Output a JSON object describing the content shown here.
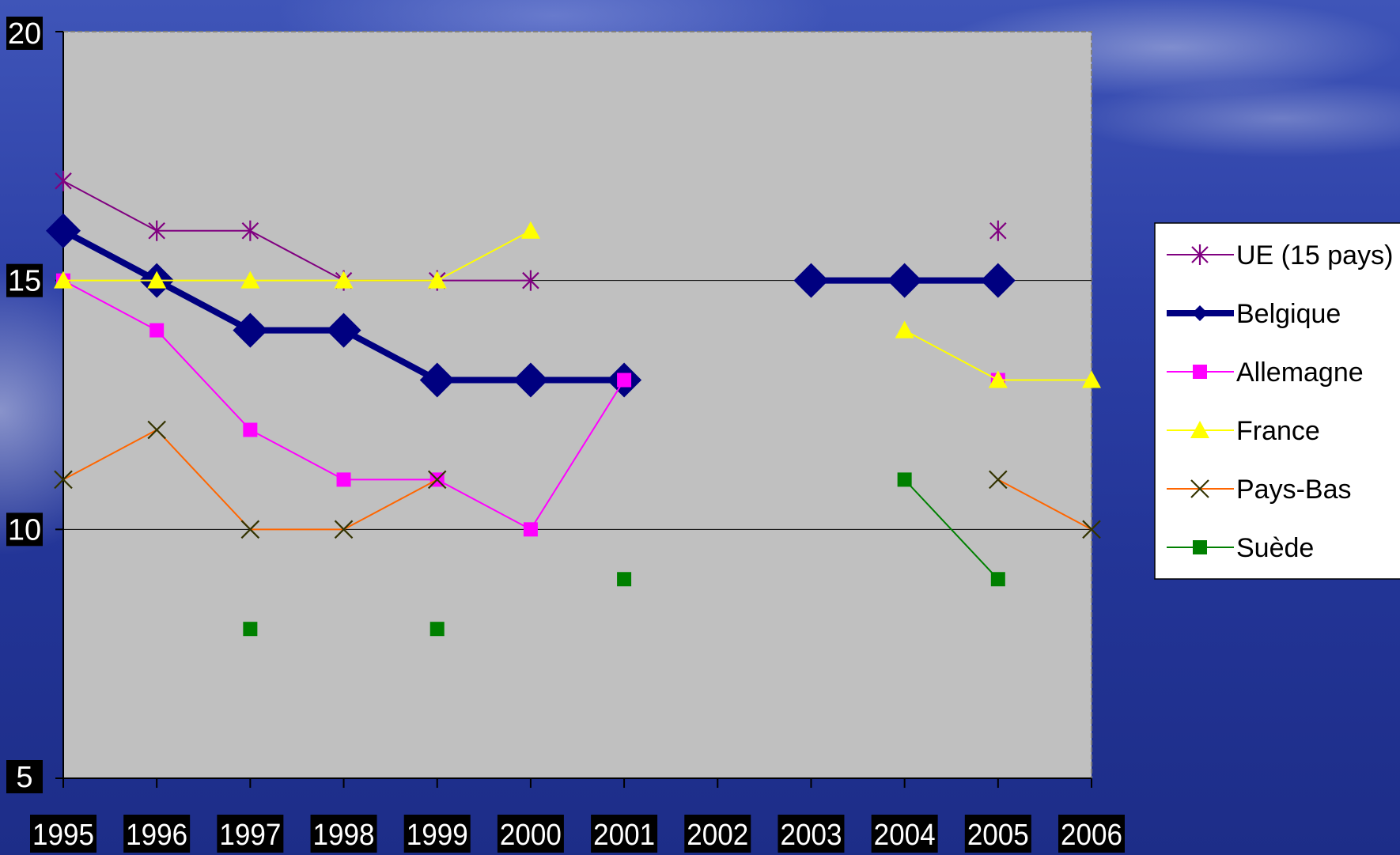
{
  "chart_data": {
    "type": "line",
    "title": "",
    "xlabel": "",
    "ylabel": "",
    "categories": [
      "1995",
      "1996",
      "1997",
      "1998",
      "1999",
      "2000",
      "2001",
      "2002",
      "2003",
      "2004",
      "2005",
      "2006"
    ],
    "ylim": [
      5,
      20
    ],
    "yticks": [
      5,
      10,
      15,
      20
    ],
    "grid": "horizontal",
    "legend_position": "right",
    "series": [
      {
        "name": "UE (15 pays)",
        "color": "#800080",
        "marker": "star",
        "width": 2,
        "values": [
          17,
          16,
          16,
          15,
          15,
          15,
          null,
          null,
          null,
          null,
          16,
          null
        ]
      },
      {
        "name": "Belgique",
        "color": "#000080",
        "marker": "diamond",
        "width": 8,
        "values": [
          16,
          15,
          14,
          14,
          13,
          13,
          13,
          null,
          15,
          15,
          15,
          null
        ]
      },
      {
        "name": "Allemagne",
        "color": "#ff00ff",
        "marker": "square",
        "width": 2,
        "values": [
          15,
          14,
          12,
          11,
          11,
          10,
          13,
          null,
          null,
          null,
          13,
          null
        ]
      },
      {
        "name": "France",
        "color": "#ffff00",
        "marker": "triangle",
        "width": 2,
        "values": [
          15,
          15,
          15,
          15,
          15,
          16,
          null,
          null,
          null,
          14,
          13,
          13
        ]
      },
      {
        "name": "Pays-Bas",
        "color": "#ff6600",
        "marker": "x",
        "width": 2,
        "values": [
          11,
          12,
          10,
          10,
          11,
          null,
          null,
          null,
          null,
          null,
          11,
          10
        ]
      },
      {
        "name": "Suède",
        "color": "#008000",
        "marker": "square",
        "width": 2,
        "values": [
          null,
          null,
          8,
          null,
          8,
          null,
          9,
          null,
          null,
          11,
          9,
          null
        ]
      }
    ]
  }
}
